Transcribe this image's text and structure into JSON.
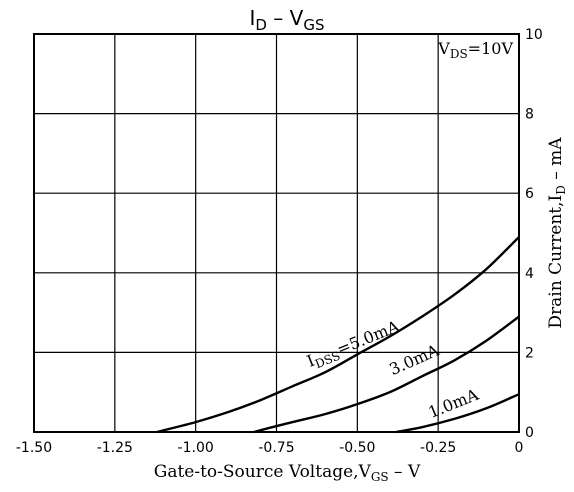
{
  "chart_data": {
    "type": "line",
    "title": {
      "main": "I",
      "sub1": "D",
      "sep": " – ",
      "main2": "V",
      "sub2": "GS"
    },
    "condition": {
      "main": "V",
      "sub": "DS",
      "rest": "=10V"
    },
    "xlabel": {
      "main": "Gate-to-Source Voltage,V",
      "sub": "GS",
      "rest": " – V"
    },
    "ylabel": {
      "main": "Drain Current,I",
      "sub": "D",
      "rest": " – mA"
    },
    "xlim": [
      -1.5,
      0
    ],
    "ylim": [
      0,
      10
    ],
    "grid": true,
    "x_ticks": [
      {
        "value": -1.5,
        "label": "-1.50"
      },
      {
        "value": -1.25,
        "label": "-1.25"
      },
      {
        "value": -1.0,
        "label": "-1.00"
      },
      {
        "value": -0.75,
        "label": "-0.75"
      },
      {
        "value": -0.5,
        "label": "-0.50"
      },
      {
        "value": -0.25,
        "label": "-0.25"
      },
      {
        "value": 0,
        "label": "0"
      }
    ],
    "y_ticks": [
      {
        "value": 0,
        "label": "0"
      },
      {
        "value": 2,
        "label": "2"
      },
      {
        "value": 4,
        "label": "4"
      },
      {
        "value": 6,
        "label": "6"
      },
      {
        "value": 8,
        "label": "8"
      },
      {
        "value": 10,
        "label": "10"
      }
    ],
    "series": [
      {
        "label": {
          "main": "I",
          "sub": "DSS",
          "rest": "=5.0mA"
        },
        "label_at": {
          "x": -0.5,
          "y": 1.95,
          "angle_deg": -22
        },
        "x": [
          -1.12,
          -1.0,
          -0.9,
          -0.8,
          -0.7,
          -0.6,
          -0.5,
          -0.4,
          -0.3,
          -0.2,
          -0.1,
          0
        ],
        "y": [
          0.0,
          0.25,
          0.5,
          0.8,
          1.15,
          1.5,
          1.95,
          2.4,
          2.9,
          3.45,
          4.1,
          4.9
        ]
      },
      {
        "label": {
          "main": "",
          "sub": "",
          "rest": "3.0mA"
        },
        "label_at": {
          "x": -0.31,
          "y": 1.55,
          "angle_deg": -24
        },
        "x": [
          -0.82,
          -0.7,
          -0.6,
          -0.5,
          -0.4,
          -0.3,
          -0.2,
          -0.1,
          0
        ],
        "y": [
          0.0,
          0.25,
          0.45,
          0.7,
          1.0,
          1.4,
          1.8,
          2.3,
          2.9
        ]
      },
      {
        "label": {
          "main": "",
          "sub": "",
          "rest": "1.0mA"
        },
        "label_at": {
          "x": -0.19,
          "y": 0.45,
          "angle_deg": -22
        },
        "x": [
          -0.38,
          -0.3,
          -0.2,
          -0.1,
          0
        ],
        "y": [
          0.0,
          0.12,
          0.33,
          0.6,
          0.95
        ]
      }
    ]
  }
}
